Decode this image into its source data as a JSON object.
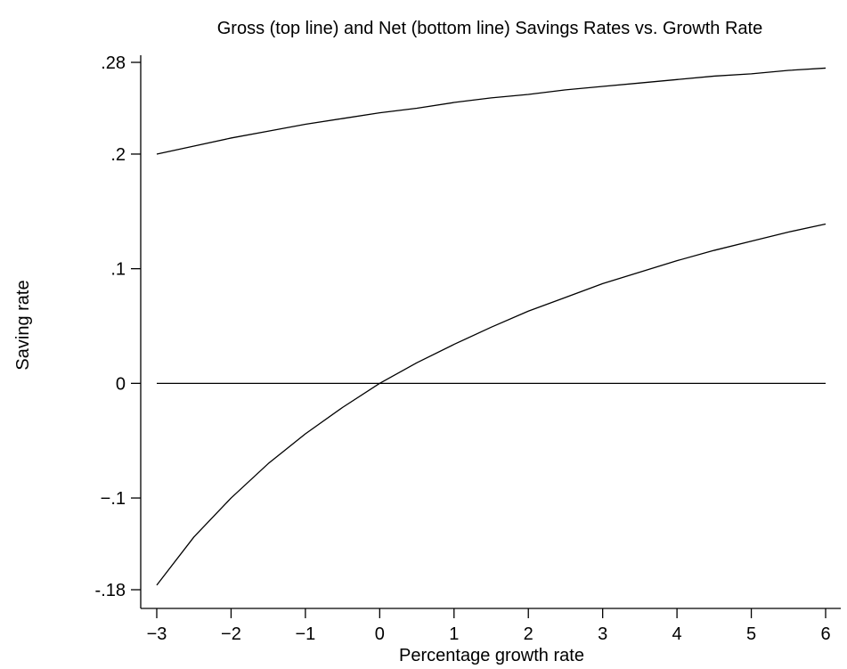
{
  "chart_data": {
    "type": "line",
    "title": "Gross (top line) and Net (bottom line) Savings Rates vs. Growth Rate",
    "xlabel": "Percentage growth rate",
    "ylabel": "Saving rate",
    "xlim": [
      -3,
      6
    ],
    "ylim": [
      -0.18,
      0.28
    ],
    "xticks": [
      -3,
      -2,
      -1,
      0,
      1,
      2,
      3,
      4,
      5,
      6
    ],
    "xtick_labels": [
      "−3",
      "−2",
      "−1",
      "0",
      "1",
      "2",
      "3",
      "4",
      "5",
      "6"
    ],
    "yticks": [
      -0.18,
      -0.1,
      0,
      0.1,
      0.2,
      0.28
    ],
    "ytick_labels": [
      "-.18",
      "−.1",
      "0",
      ".1",
      ".2",
      ".28"
    ],
    "grid": false,
    "legend": "none",
    "series": [
      {
        "x": [
          -3,
          -2.5,
          -2,
          -1.5,
          -1,
          -0.5,
          0,
          0.5,
          1,
          1.5,
          2,
          2.5,
          3,
          3.5,
          4,
          4.5,
          5,
          5.5,
          6
        ],
        "values": [
          0.2,
          0.207,
          0.214,
          0.22,
          0.226,
          0.231,
          0.236,
          0.24,
          0.245,
          0.249,
          0.252,
          0.256,
          0.259,
          0.262,
          0.265,
          0.268,
          0.27,
          0.273,
          0.275
        ]
      },
      {
        "x": [
          -3,
          -2.5,
          -2,
          -1.5,
          -1,
          -0.5,
          0,
          0.5,
          1,
          1.5,
          2,
          2.5,
          3,
          3.5,
          4,
          4.5,
          5,
          5.5,
          6
        ],
        "values": [
          -0.176,
          -0.134,
          -0.1,
          -0.07,
          -0.044,
          -0.021,
          0.0,
          0.018,
          0.034,
          0.049,
          0.063,
          0.075,
          0.087,
          0.097,
          0.107,
          0.116,
          0.124,
          0.132,
          0.139
        ]
      },
      {
        "x": [
          -3,
          6
        ],
        "values": [
          0,
          0
        ]
      }
    ]
  }
}
